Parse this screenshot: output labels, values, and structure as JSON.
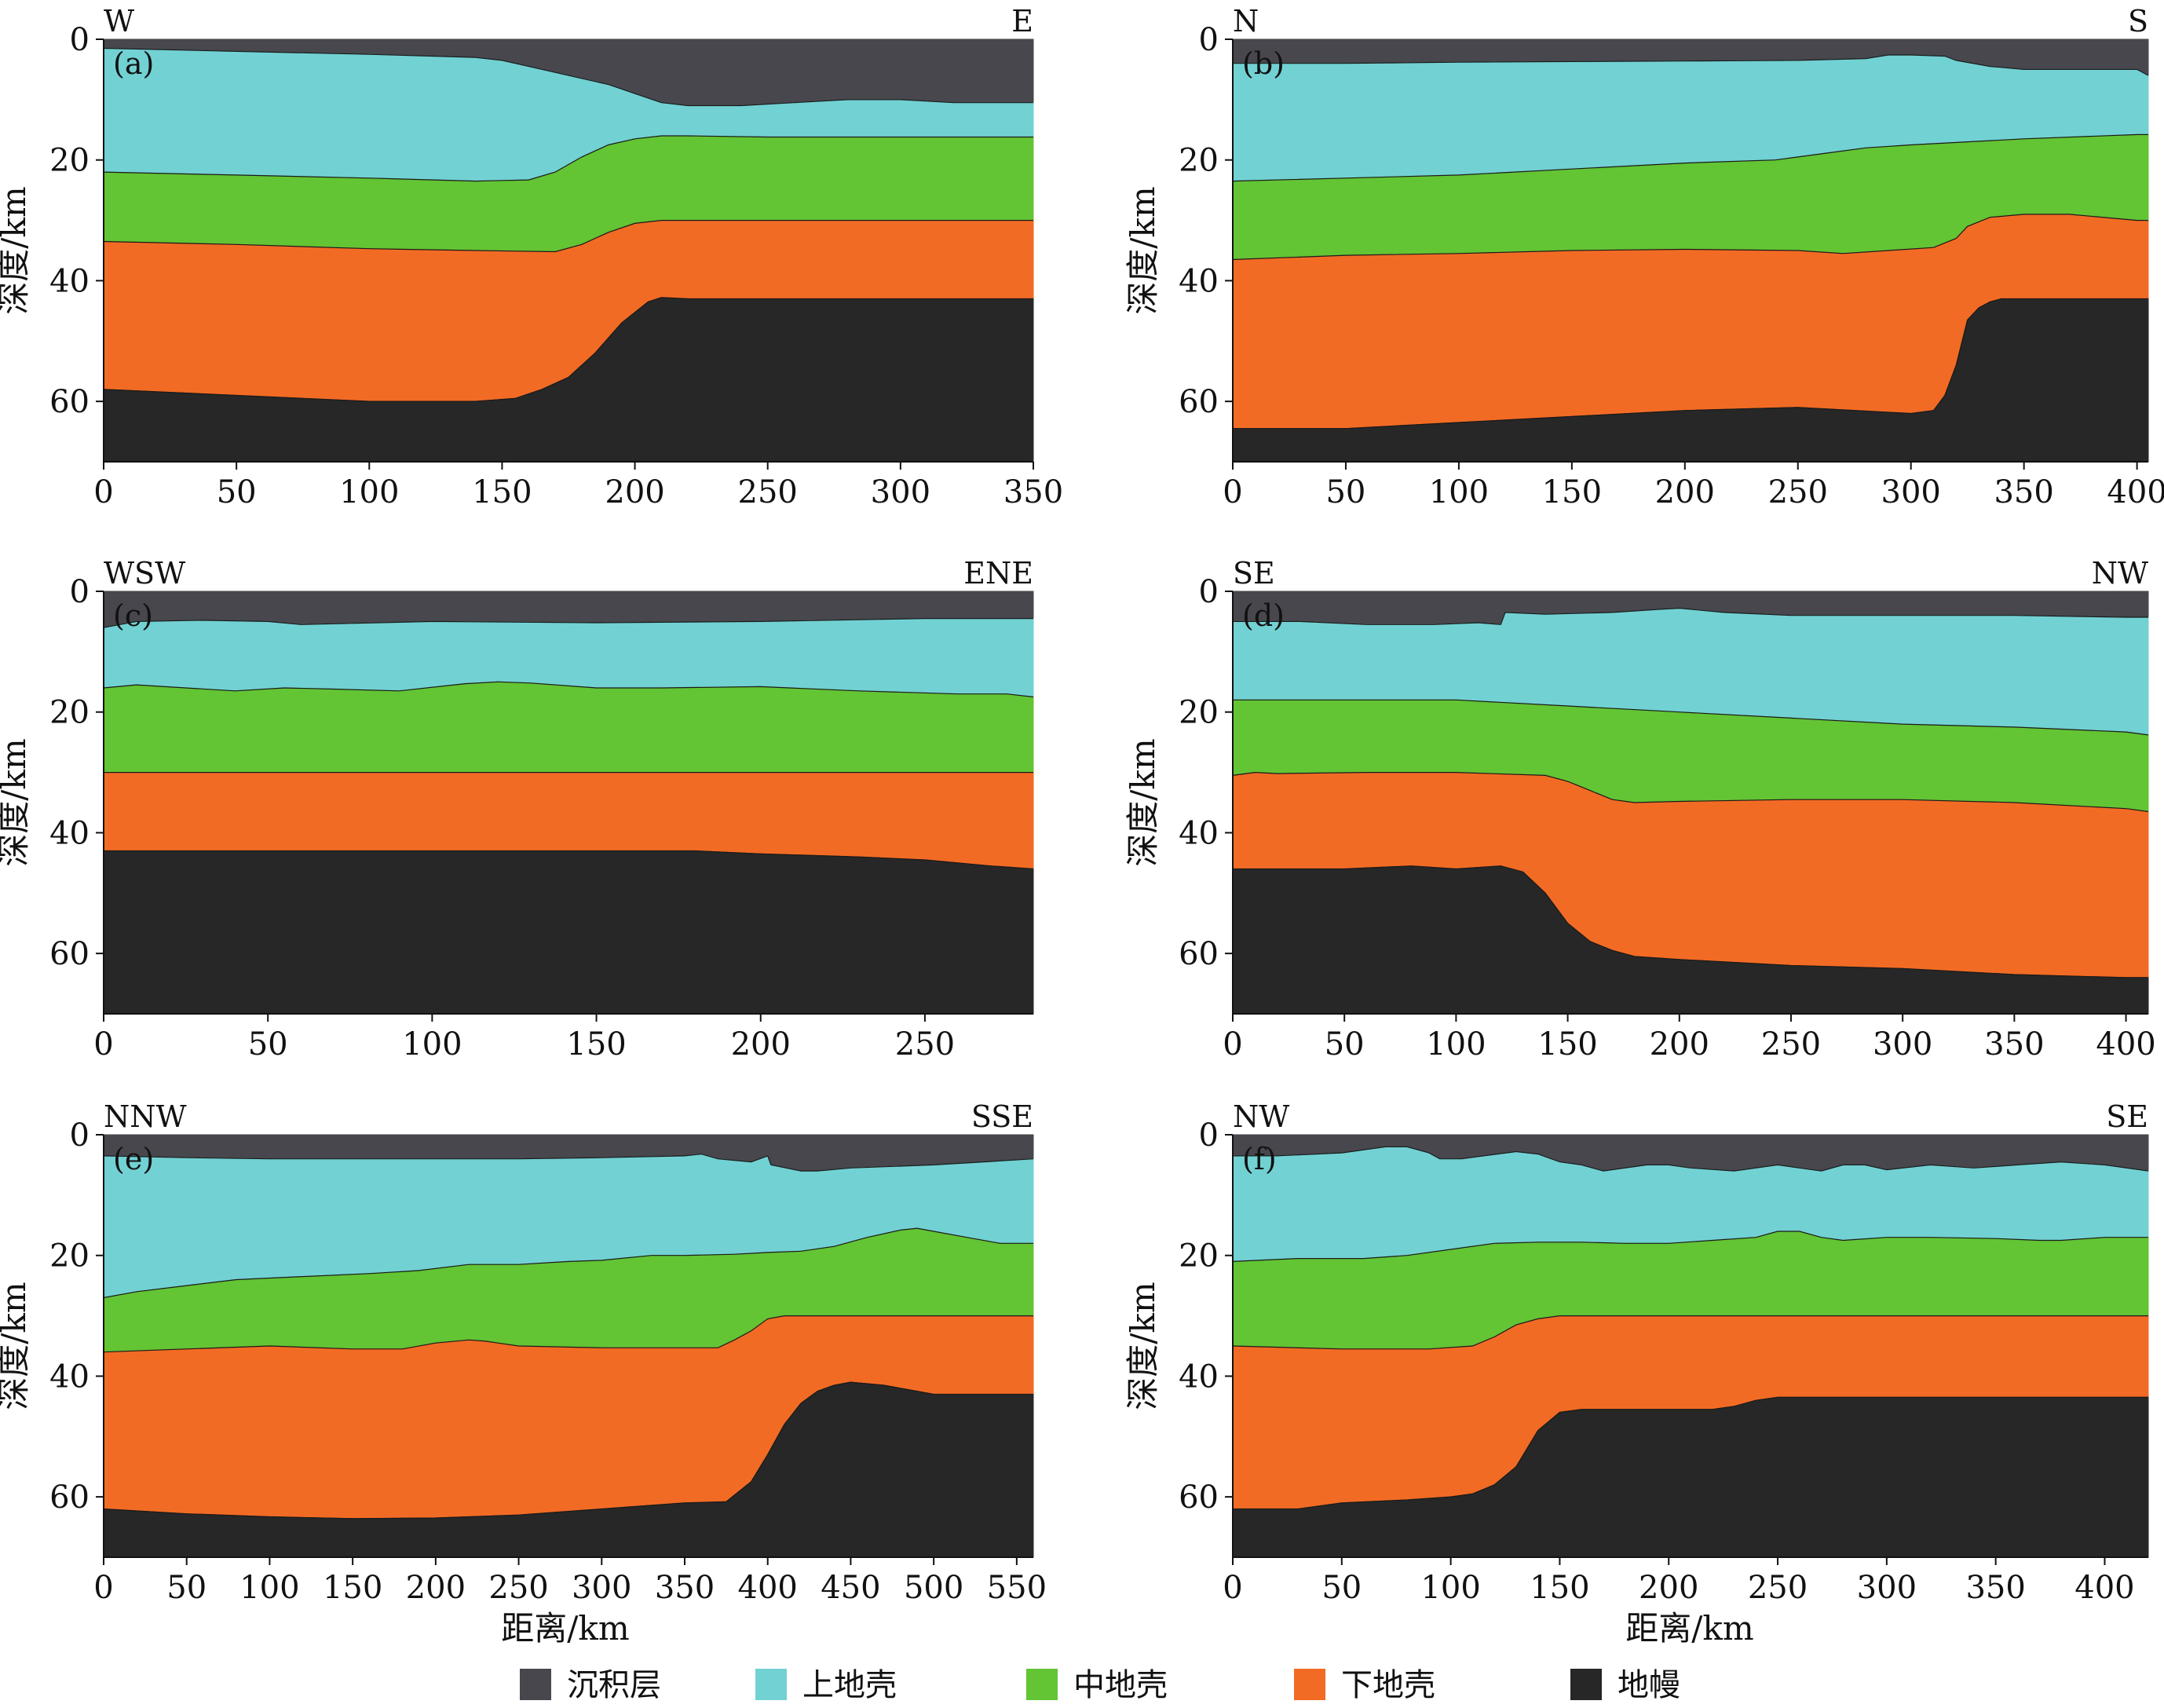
{
  "layer_names": [
    "沉积层",
    "上地壳",
    "中地壳",
    "下地壳",
    "地幔"
  ],
  "colors": {
    "sediment": "#47474d",
    "upper_crust": "#72d1d3",
    "middle_crust": "#63c434",
    "lower_crust": "#f26b24",
    "mantle": "#272727"
  },
  "y_axis_label": "深度/km",
  "x_axis_label": "距离/km",
  "legend": [
    {
      "name": "沉积层",
      "color": "#47474d"
    },
    {
      "name": "上地壳",
      "color": "#72d1d3"
    },
    {
      "name": "中地壳",
      "color": "#63c434"
    },
    {
      "name": "下地壳",
      "color": "#f26b24"
    },
    {
      "name": "地幔",
      "color": "#272727"
    }
  ],
  "chart_data": [
    {
      "type": "area",
      "panel_label": "(a)",
      "left_direction": "W",
      "right_direction": "E",
      "xlim": [
        0,
        350
      ],
      "ylim": [
        0,
        70
      ],
      "y_inverted": true,
      "x_ticks": [
        0,
        50,
        100,
        150,
        200,
        250,
        300,
        350
      ],
      "y_ticks": [
        0,
        20,
        40,
        60
      ],
      "boundaries": [
        {
          "name": "沉积层底",
          "x": [
            0,
            50,
            100,
            140,
            150,
            160,
            175,
            190,
            200,
            210,
            220,
            240,
            260,
            280,
            300,
            320,
            350
          ],
          "y": [
            1.5,
            2,
            2.5,
            3,
            3.5,
            4.5,
            6,
            7.5,
            9,
            10.5,
            11,
            11,
            10.5,
            10,
            10,
            10.5,
            10.5
          ]
        },
        {
          "name": "上地壳底",
          "x": [
            0,
            50,
            100,
            140,
            160,
            170,
            180,
            190,
            200,
            210,
            220,
            250,
            300,
            350
          ],
          "y": [
            22,
            22.5,
            23,
            23.5,
            23.3,
            22,
            19.5,
            17.5,
            16.5,
            16,
            16,
            16.2,
            16.2,
            16.2
          ]
        },
        {
          "name": "中地壳底",
          "x": [
            0,
            50,
            100,
            140,
            170,
            180,
            190,
            200,
            210,
            220,
            250,
            300,
            350
          ],
          "y": [
            33.5,
            34,
            34.7,
            35,
            35.2,
            34,
            32,
            30.5,
            30,
            30,
            30,
            30,
            30
          ]
        },
        {
          "name": "下地壳底",
          "x": [
            0,
            50,
            100,
            140,
            155,
            165,
            175,
            185,
            195,
            205,
            210,
            220,
            250,
            300,
            350
          ],
          "y": [
            58,
            59,
            60,
            60,
            59.5,
            58,
            56,
            52,
            47,
            43.5,
            42.8,
            43,
            43,
            43,
            43
          ]
        }
      ]
    },
    {
      "type": "area",
      "panel_label": "(b)",
      "left_direction": "N",
      "right_direction": "S",
      "xlim": [
        0,
        405
      ],
      "ylim": [
        0,
        70
      ],
      "y_inverted": true,
      "x_ticks": [
        0,
        50,
        100,
        150,
        200,
        250,
        300,
        350,
        400
      ],
      "y_ticks": [
        0,
        20,
        40,
        60
      ],
      "boundaries": [
        {
          "name": "沉积层底",
          "x": [
            0,
            50,
            100,
            150,
            200,
            250,
            280,
            290,
            300,
            315,
            320,
            335,
            350,
            370,
            400,
            405
          ],
          "y": [
            4,
            4,
            3.8,
            3.7,
            3.6,
            3.5,
            3.2,
            2.6,
            2.6,
            2.8,
            3.5,
            4.5,
            5,
            5,
            5,
            6
          ]
        },
        {
          "name": "上地壳底",
          "x": [
            0,
            50,
            100,
            150,
            200,
            240,
            260,
            280,
            300,
            350,
            400,
            405
          ],
          "y": [
            23.5,
            23,
            22.5,
            21.5,
            20.5,
            20,
            19,
            18,
            17.5,
            16.5,
            15.8,
            15.8
          ]
        },
        {
          "name": "中地壳底",
          "x": [
            0,
            50,
            100,
            150,
            200,
            250,
            270,
            290,
            310,
            320,
            325,
            335,
            350,
            370,
            400,
            405
          ],
          "y": [
            36.5,
            35.8,
            35.5,
            35,
            34.8,
            35,
            35.5,
            35,
            34.5,
            33,
            31,
            29.5,
            29,
            29,
            30,
            30
          ]
        },
        {
          "name": "下地壳底",
          "x": [
            0,
            50,
            100,
            150,
            200,
            250,
            300,
            310,
            315,
            320,
            325,
            330,
            335,
            340,
            350,
            400,
            405
          ],
          "y": [
            64.5,
            64.5,
            63.5,
            62.5,
            61.5,
            61,
            62,
            61.5,
            59,
            54,
            46.5,
            44.5,
            43.5,
            43,
            43,
            43,
            43
          ]
        }
      ]
    },
    {
      "type": "area",
      "panel_label": "(c)",
      "left_direction": "WSW",
      "right_direction": "ENE",
      "xlim": [
        0,
        283
      ],
      "ylim": [
        0,
        70
      ],
      "y_inverted": true,
      "x_ticks": [
        0,
        50,
        100,
        150,
        200,
        250
      ],
      "y_ticks": [
        0,
        20,
        40,
        60
      ],
      "boundaries": [
        {
          "name": "沉积层底",
          "x": [
            0,
            5,
            10,
            30,
            50,
            60,
            100,
            150,
            200,
            250,
            283
          ],
          "y": [
            6,
            5.5,
            5,
            4.8,
            5,
            5.5,
            5,
            5.2,
            5,
            4.5,
            4.5
          ]
        },
        {
          "name": "上地壳底",
          "x": [
            0,
            10,
            25,
            40,
            55,
            70,
            90,
            110,
            120,
            130,
            150,
            170,
            200,
            230,
            260,
            275,
            283
          ],
          "y": [
            16,
            15.5,
            16,
            16.5,
            16,
            16.2,
            16.5,
            15.3,
            15,
            15.2,
            16,
            16,
            15.8,
            16.5,
            17,
            17,
            17.5
          ]
        },
        {
          "name": "中地壳底",
          "x": [
            0,
            100,
            200,
            283
          ],
          "y": [
            30,
            30,
            30,
            30
          ]
        },
        {
          "name": "下地壳底",
          "x": [
            0,
            50,
            100,
            150,
            180,
            200,
            230,
            250,
            270,
            283
          ],
          "y": [
            43,
            43,
            43,
            43,
            43,
            43.5,
            44,
            44.5,
            45.5,
            46
          ]
        }
      ]
    },
    {
      "type": "area",
      "panel_label": "(d)",
      "left_direction": "SE",
      "right_direction": "NW",
      "xlim": [
        0,
        410
      ],
      "ylim": [
        0,
        70
      ],
      "y_inverted": true,
      "x_ticks": [
        0,
        50,
        100,
        150,
        200,
        250,
        300,
        350,
        400
      ],
      "y_ticks": [
        0,
        20,
        40,
        60
      ],
      "boundaries": [
        {
          "name": "沉积层底",
          "x": [
            0,
            30,
            60,
            90,
            110,
            120,
            122,
            140,
            170,
            190,
            200,
            220,
            250,
            300,
            350,
            400,
            410
          ],
          "y": [
            5,
            5,
            5.5,
            5.5,
            5.2,
            5.5,
            3.5,
            3.8,
            3.5,
            3,
            2.8,
            3.5,
            4,
            4,
            4,
            4.3,
            4.3
          ]
        },
        {
          "name": "上地壳底",
          "x": [
            0,
            50,
            100,
            150,
            200,
            250,
            300,
            350,
            400,
            410
          ],
          "y": [
            18,
            18,
            18,
            19,
            20,
            21,
            22,
            22.5,
            23.3,
            23.8
          ]
        },
        {
          "name": "中地壳底",
          "x": [
            0,
            10,
            20,
            60,
            100,
            140,
            150,
            160,
            170,
            180,
            200,
            250,
            300,
            350,
            400,
            410
          ],
          "y": [
            30.5,
            30,
            30.2,
            30,
            30,
            30.5,
            31.5,
            33,
            34.5,
            35,
            34.8,
            34.5,
            34.5,
            35,
            36,
            36.5
          ]
        },
        {
          "name": "下地壳底",
          "x": [
            0,
            50,
            80,
            100,
            120,
            130,
            140,
            150,
            160,
            170,
            180,
            200,
            250,
            300,
            350,
            400,
            410
          ],
          "y": [
            46,
            46,
            45.5,
            46,
            45.5,
            46.5,
            50,
            55,
            58,
            59.5,
            60.5,
            61,
            62,
            62.5,
            63.5,
            64,
            64
          ]
        }
      ]
    },
    {
      "type": "area",
      "panel_label": "(e)",
      "left_direction": "NNW",
      "right_direction": "SSE",
      "xlim": [
        0,
        560
      ],
      "ylim": [
        0,
        70
      ],
      "y_inverted": true,
      "x_ticks": [
        0,
        50,
        100,
        150,
        200,
        250,
        300,
        350,
        400,
        450,
        500,
        550
      ],
      "y_ticks": [
        0,
        20,
        40,
        60
      ],
      "boundaries": [
        {
          "name": "沉积层底",
          "x": [
            0,
            50,
            100,
            150,
            200,
            250,
            300,
            350,
            360,
            370,
            390,
            400,
            402,
            420,
            430,
            450,
            500,
            530,
            560
          ],
          "y": [
            3.5,
            3.8,
            4,
            4,
            4,
            4,
            3.8,
            3.5,
            3.2,
            4,
            4.5,
            3.5,
            5,
            6,
            6,
            5.5,
            5,
            4.5,
            4
          ]
        },
        {
          "name": "上地壳底",
          "x": [
            0,
            20,
            50,
            80,
            120,
            160,
            190,
            220,
            250,
            280,
            300,
            330,
            350,
            380,
            400,
            420,
            440,
            460,
            480,
            490,
            500,
            520,
            540,
            560
          ],
          "y": [
            27,
            26,
            25,
            24,
            23.5,
            23,
            22.5,
            21.5,
            21.5,
            21,
            20.8,
            20,
            20,
            19.8,
            19.5,
            19.3,
            18.5,
            17,
            15.8,
            15.5,
            16,
            17,
            18,
            18
          ]
        },
        {
          "name": "中地壳底",
          "x": [
            0,
            50,
            100,
            150,
            180,
            200,
            220,
            230,
            250,
            300,
            350,
            370,
            380,
            390,
            400,
            410,
            420,
            450,
            500,
            560
          ],
          "y": [
            36,
            35.5,
            35,
            35.5,
            35.5,
            34.5,
            34,
            34.2,
            35,
            35.3,
            35.3,
            35.3,
            34,
            32.5,
            30.5,
            30,
            30,
            30,
            30,
            30
          ]
        },
        {
          "name": "下地壳底",
          "x": [
            0,
            50,
            100,
            150,
            200,
            250,
            300,
            350,
            375,
            390,
            400,
            410,
            420,
            430,
            440,
            450,
            470,
            490,
            500,
            560
          ],
          "y": [
            62,
            62.8,
            63.3,
            63.6,
            63.5,
            63,
            62,
            61,
            60.8,
            57.5,
            53,
            48,
            44.5,
            42.5,
            41.5,
            41,
            41.5,
            42.5,
            43,
            43
          ]
        }
      ]
    },
    {
      "type": "area",
      "panel_label": "(f)",
      "left_direction": "NW",
      "right_direction": "SE",
      "xlim": [
        0,
        420
      ],
      "ylim": [
        0,
        70
      ],
      "y_inverted": true,
      "x_ticks": [
        0,
        50,
        100,
        150,
        200,
        250,
        300,
        350,
        400
      ],
      "y_ticks": [
        0,
        20,
        40,
        60
      ],
      "boundaries": [
        {
          "name": "沉积层底",
          "x": [
            0,
            20,
            50,
            70,
            80,
            90,
            95,
            105,
            115,
            130,
            140,
            150,
            160,
            170,
            190,
            200,
            210,
            230,
            250,
            260,
            270,
            280,
            290,
            300,
            320,
            340,
            360,
            380,
            400,
            420
          ],
          "y": [
            3.5,
            3.5,
            3,
            2,
            2,
            3,
            4,
            4,
            3.5,
            2.8,
            3.2,
            4.5,
            5,
            6,
            5,
            5,
            5.5,
            6,
            5,
            5.5,
            6,
            5,
            5,
            5.8,
            5,
            5.5,
            5,
            4.5,
            5,
            6
          ]
        },
        {
          "name": "上地壳底",
          "x": [
            0,
            30,
            60,
            80,
            100,
            120,
            140,
            160,
            180,
            200,
            220,
            240,
            250,
            260,
            270,
            280,
            300,
            320,
            350,
            370,
            380,
            400,
            420
          ],
          "y": [
            21,
            20.5,
            20.5,
            20,
            19,
            18,
            17.8,
            17.8,
            18,
            18,
            17.5,
            17,
            16,
            16,
            17,
            17.5,
            17,
            17,
            17.2,
            17.5,
            17.5,
            17,
            17
          ]
        },
        {
          "name": "中地壳底",
          "x": [
            0,
            50,
            90,
            110,
            120,
            130,
            140,
            150,
            200,
            250,
            300,
            350,
            400,
            420
          ],
          "y": [
            35,
            35.5,
            35.5,
            35,
            33.5,
            31.5,
            30.5,
            30,
            30,
            30,
            30,
            30,
            30,
            30
          ]
        },
        {
          "name": "下地壳底",
          "x": [
            0,
            30,
            50,
            80,
            100,
            110,
            120,
            130,
            140,
            150,
            160,
            200,
            220,
            230,
            240,
            250,
            300,
            350,
            400,
            420
          ],
          "y": [
            62,
            62,
            61,
            60.5,
            60,
            59.5,
            58,
            55,
            49,
            46,
            45.5,
            45.5,
            45.5,
            45,
            44,
            43.5,
            43.5,
            43.5,
            43.5,
            43.5
          ]
        }
      ]
    }
  ]
}
